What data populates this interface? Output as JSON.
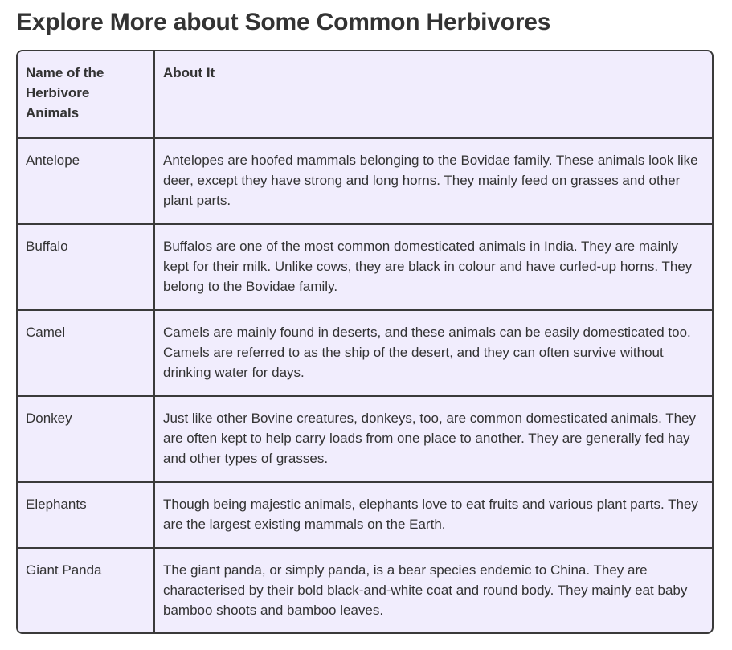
{
  "title": "Explore More about Some Common Herbivores",
  "table": {
    "headers": [
      "Name of the Herbivore Animals",
      "About It"
    ],
    "rows": [
      {
        "name": "Antelope",
        "about": "Antelopes are hoofed mammals belonging to the Bovidae family. These animals look like deer, except they have strong and long horns. They mainly feed on grasses and other plant parts."
      },
      {
        "name": "Buffalo",
        "about": "Buffalos are one of the most common domesticated animals in India. They are mainly kept for their milk. Unlike cows, they are black in colour and have curled-up horns. They belong to the Bovidae family."
      },
      {
        "name": "Camel",
        "about": "Camels are mainly found in deserts, and these animals can be easily domesticated too. Camels are referred to as the ship of the desert, and they can often survive without drinking water for days."
      },
      {
        "name": "Donkey",
        "about": "Just like other Bovine creatures, donkeys, too, are common domesticated animals. They are often kept to help carry loads from one place to another. They are generally fed hay and other types of grasses."
      },
      {
        "name": "Elephants",
        "about": "Though being majestic animals, elephants love to eat fruits and various plant parts. They are the largest existing mammals on the Earth."
      },
      {
        "name": "Giant Panda",
        "about": "The giant panda, or simply panda, is a bear species endemic to China. They are characterised by their bold black-and-white coat and round body. They mainly eat baby bamboo shoots and bamboo leaves."
      }
    ]
  },
  "colors": {
    "text": "#333333",
    "table_background": "#f1edfd",
    "border": "#3a3a3a"
  }
}
